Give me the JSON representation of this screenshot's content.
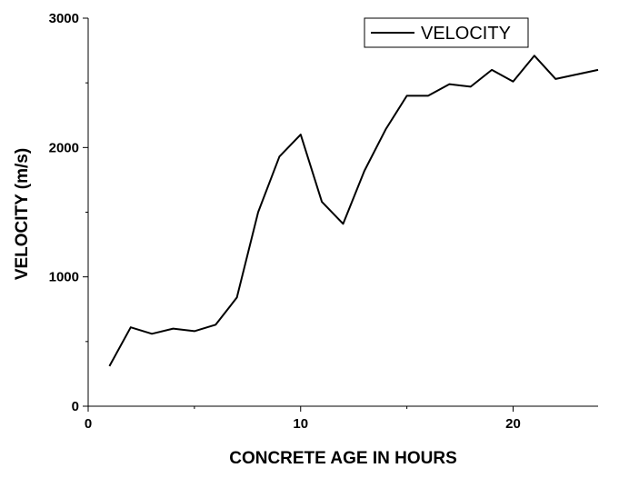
{
  "chart_data": {
    "type": "line",
    "xlabel": "CONCRETE AGE IN HOURS",
    "ylabel": "VELOCITY (m/s)",
    "xlim": [
      0,
      24
    ],
    "ylim": [
      0,
      3000
    ],
    "x_ticks": [
      0,
      10,
      20
    ],
    "y_ticks": [
      0,
      1000,
      2000,
      3000
    ],
    "grid": false,
    "legend_position": "top-right",
    "series": [
      {
        "name": "VELOCITY",
        "color": "#000000",
        "x": [
          1,
          2,
          3,
          4,
          5,
          6,
          7,
          8,
          9,
          10,
          11,
          12,
          13,
          14,
          15,
          16,
          17,
          18,
          19,
          20,
          21,
          22,
          23,
          24
        ],
        "y": [
          310,
          610,
          560,
          600,
          580,
          630,
          840,
          1500,
          1930,
          2100,
          1580,
          1410,
          1820,
          2140,
          2400,
          2400,
          2490,
          2470,
          2600,
          2510,
          2710,
          2530,
          2565,
          2600
        ]
      }
    ]
  }
}
